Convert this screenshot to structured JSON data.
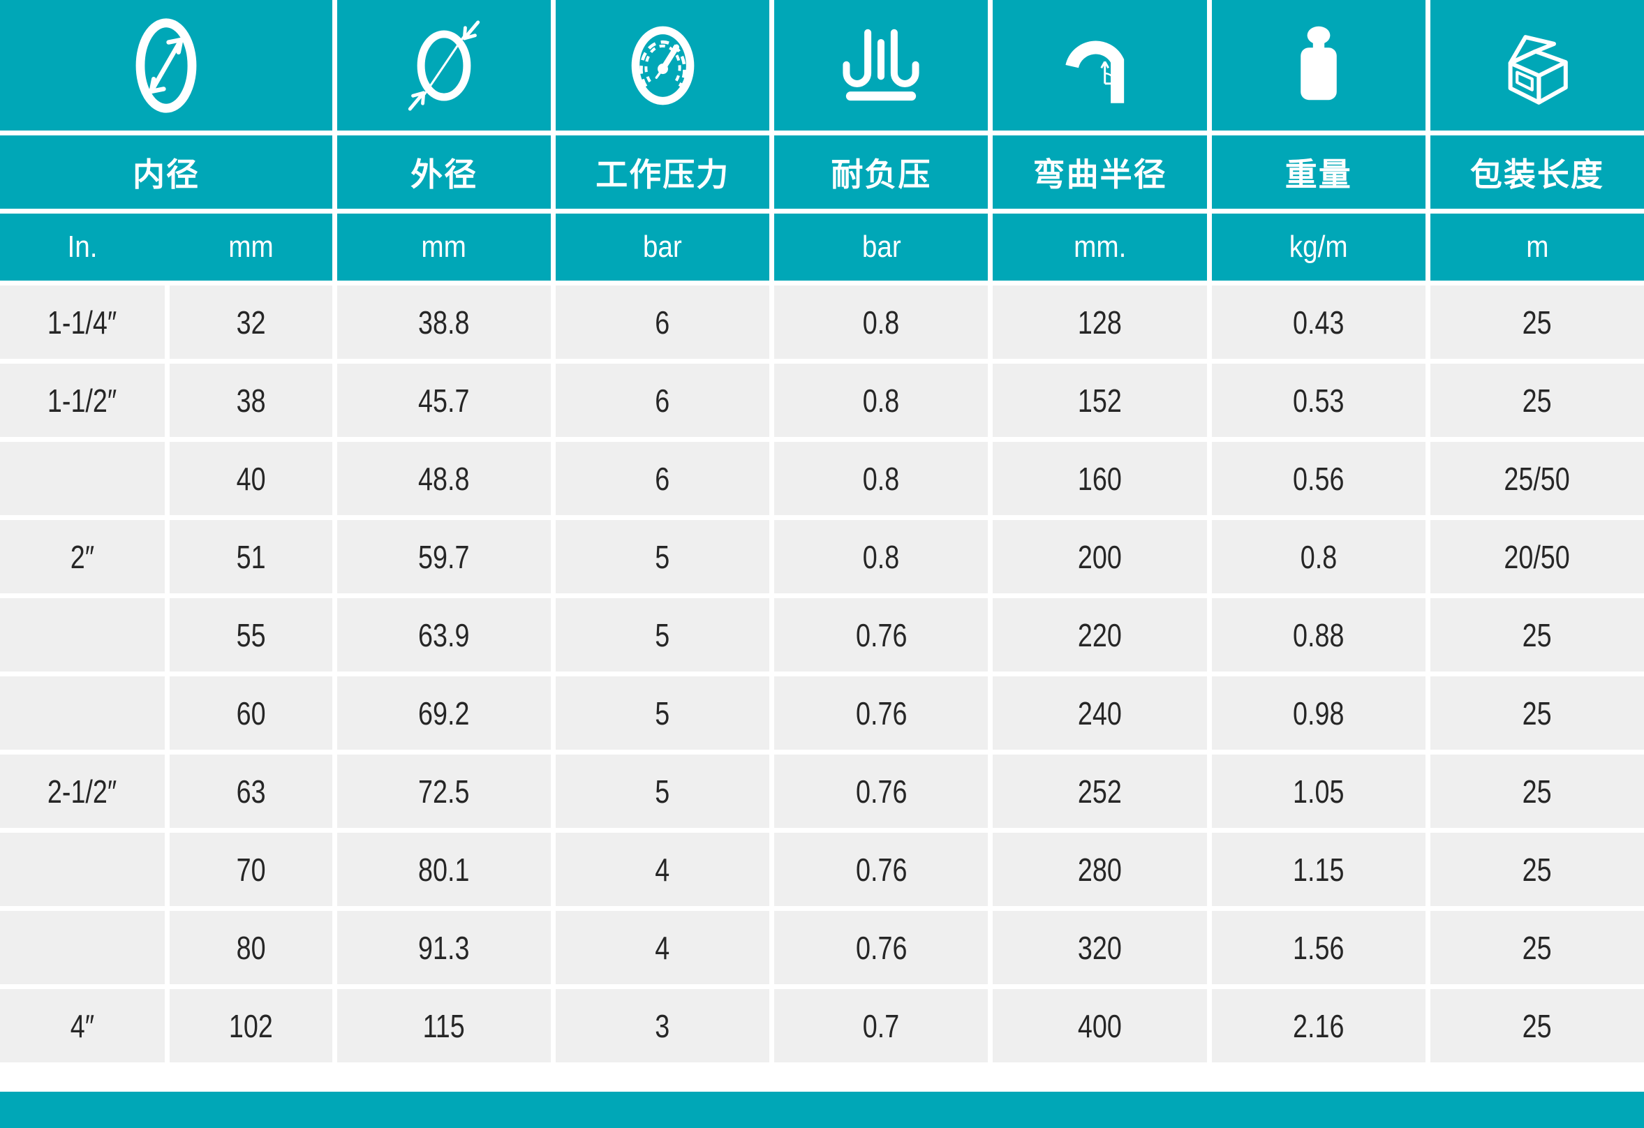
{
  "theme": {
    "teal": "#00a7b7",
    "cell_gray": "#efefef",
    "text_dark": "#262626",
    "header_text": "#ffffff"
  },
  "columns": [
    {
      "id": "inner_diameter",
      "label": "内径",
      "icon": "inner-diameter-icon",
      "units": [
        "In.",
        "mm"
      ]
    },
    {
      "id": "outer_diameter",
      "label": "外径",
      "icon": "outer-diameter-icon",
      "unit": "mm"
    },
    {
      "id": "working_pressure",
      "label": "工作压力",
      "icon": "pressure-gauge-icon",
      "unit": "bar"
    },
    {
      "id": "vacuum_resistance",
      "label": "耐负压",
      "icon": "vacuum-icon",
      "unit": "bar"
    },
    {
      "id": "bend_radius",
      "label": "弯曲半径",
      "icon": "bend-radius-icon",
      "unit": "mm."
    },
    {
      "id": "weight",
      "label": "重量",
      "icon": "weight-icon",
      "unit": "kg/m"
    },
    {
      "id": "package_length",
      "label": "包装长度",
      "icon": "package-icon",
      "unit": "m"
    }
  ],
  "rows": [
    {
      "in": "1-1/4″",
      "mm": "32",
      "od": "38.8",
      "wp": "6",
      "vac": "0.8",
      "bend": "128",
      "weight": "0.43",
      "pack": "25"
    },
    {
      "in": "1-1/2″",
      "mm": "38",
      "od": "45.7",
      "wp": "6",
      "vac": "0.8",
      "bend": "152",
      "weight": "0.53",
      "pack": "25"
    },
    {
      "in": "",
      "mm": "40",
      "od": "48.8",
      "wp": "6",
      "vac": "0.8",
      "bend": "160",
      "weight": "0.56",
      "pack": "25/50"
    },
    {
      "in": "2″",
      "mm": "51",
      "od": "59.7",
      "wp": "5",
      "vac": "0.8",
      "bend": "200",
      "weight": "0.8",
      "pack": "20/50"
    },
    {
      "in": "",
      "mm": "55",
      "od": "63.9",
      "wp": "5",
      "vac": "0.76",
      "bend": "220",
      "weight": "0.88",
      "pack": "25"
    },
    {
      "in": "",
      "mm": "60",
      "od": "69.2",
      "wp": "5",
      "vac": "0.76",
      "bend": "240",
      "weight": "0.98",
      "pack": "25"
    },
    {
      "in": "2-1/2″",
      "mm": "63",
      "od": "72.5",
      "wp": "5",
      "vac": "0.76",
      "bend": "252",
      "weight": "1.05",
      "pack": "25"
    },
    {
      "in": "",
      "mm": "70",
      "od": "80.1",
      "wp": "4",
      "vac": "0.76",
      "bend": "280",
      "weight": "1.15",
      "pack": "25"
    },
    {
      "in": "",
      "mm": "80",
      "od": "91.3",
      "wp": "4",
      "vac": "0.76",
      "bend": "320",
      "weight": "1.56",
      "pack": "25"
    },
    {
      "in": "4″",
      "mm": "102",
      "od": "115",
      "wp": "3",
      "vac": "0.7",
      "bend": "400",
      "weight": "2.16",
      "pack": "25"
    }
  ],
  "chart_data": {
    "type": "table",
    "title": "",
    "column_headers": [
      "内径",
      "外径",
      "工作压力",
      "耐负压",
      "弯曲半径",
      "重量",
      "包装长度"
    ],
    "unit_row": [
      "In.",
      "mm",
      "mm",
      "bar",
      "bar",
      "mm.",
      "kg/m",
      "m"
    ],
    "rows": [
      [
        "1-1/4″",
        "32",
        "38.8",
        "6",
        "0.8",
        "128",
        "0.43",
        "25"
      ],
      [
        "1-1/2″",
        "38",
        "45.7",
        "6",
        "0.8",
        "152",
        "0.53",
        "25"
      ],
      [
        "",
        "40",
        "48.8",
        "6",
        "0.8",
        "160",
        "0.56",
        "25/50"
      ],
      [
        "2″",
        "51",
        "59.7",
        "5",
        "0.8",
        "200",
        "0.8",
        "20/50"
      ],
      [
        "",
        "55",
        "63.9",
        "5",
        "0.76",
        "220",
        "0.88",
        "25"
      ],
      [
        "",
        "60",
        "69.2",
        "5",
        "0.76",
        "240",
        "0.98",
        "25"
      ],
      [
        "2-1/2″",
        "63",
        "72.5",
        "5",
        "0.76",
        "252",
        "1.05",
        "25"
      ],
      [
        "",
        "70",
        "80.1",
        "4",
        "0.76",
        "280",
        "1.15",
        "25"
      ],
      [
        "",
        "80",
        "91.3",
        "4",
        "0.76",
        "320",
        "1.56",
        "25"
      ],
      [
        "4″",
        "102",
        "115",
        "3",
        "0.7",
        "400",
        "2.16",
        "25"
      ]
    ],
    "legend_position": "none",
    "grid": "white gaps between cells, teal header, light-gray data cells"
  }
}
